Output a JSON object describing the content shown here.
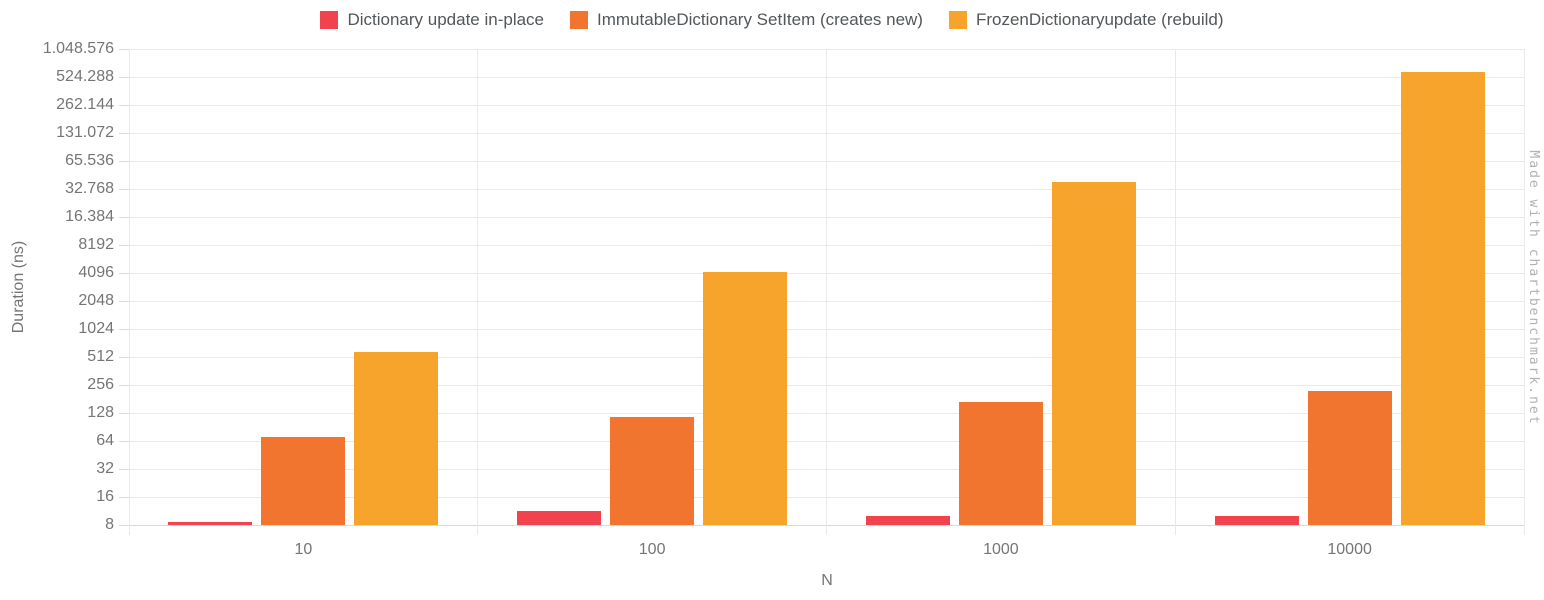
{
  "watermark": "Made with chartbenchmark.net",
  "legend": [
    {
      "label": "Dictionary update in-place",
      "color": "#f2424e"
    },
    {
      "label": "ImmutableDictionary SetItem (creates new)",
      "color": "#f1752e"
    },
    {
      "label": "FrozenDictionaryupdate (rebuild)",
      "color": "#f6a42c"
    }
  ],
  "chart_data": {
    "type": "bar",
    "title": "",
    "xlabel": "N",
    "ylabel": "Duration (ns)",
    "y_scale": "log2",
    "ylim": [
      8,
      1048576
    ],
    "grid": true,
    "legend_position": "top",
    "y_ticks": [
      {
        "value": 8,
        "label": "8"
      },
      {
        "value": 16,
        "label": "16"
      },
      {
        "value": 32,
        "label": "32"
      },
      {
        "value": 64,
        "label": "64"
      },
      {
        "value": 128,
        "label": "128"
      },
      {
        "value": 256,
        "label": "256"
      },
      {
        "value": 512,
        "label": "512"
      },
      {
        "value": 1024,
        "label": "1024"
      },
      {
        "value": 2048,
        "label": "2048"
      },
      {
        "value": 4096,
        "label": "4096"
      },
      {
        "value": 8192,
        "label": "8192"
      },
      {
        "value": 16384,
        "label": "16.384"
      },
      {
        "value": 32768,
        "label": "32.768"
      },
      {
        "value": 65536,
        "label": "65.536"
      },
      {
        "value": 131072,
        "label": "131.072"
      },
      {
        "value": 262144,
        "label": "262.144"
      },
      {
        "value": 524288,
        "label": "524.288"
      },
      {
        "value": 1048576,
        "label": "1.048.576"
      }
    ],
    "categories": [
      "10",
      "100",
      "1000",
      "10000"
    ],
    "series": [
      {
        "name": "Dictionary update in-place",
        "color": "#f2424e",
        "values": [
          8.6,
          11.4,
          9.9,
          10.1
        ]
      },
      {
        "name": "ImmutableDictionary SetItem (creates new)",
        "color": "#f1752e",
        "values": [
          70,
          116,
          168,
          220
        ]
      },
      {
        "name": "FrozenDictionaryupdate (rebuild)",
        "color": "#f6a42c",
        "values": [
          575,
          4150,
          39000,
          600000
        ]
      }
    ]
  }
}
